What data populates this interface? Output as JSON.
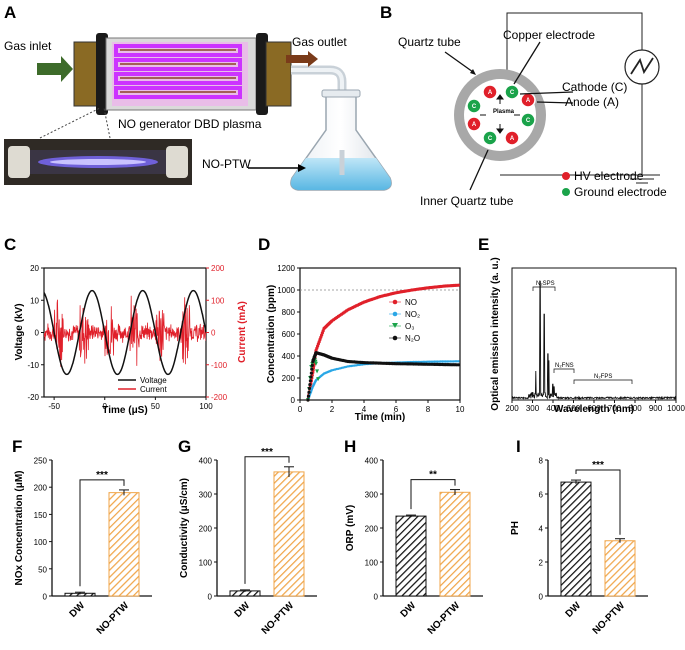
{
  "panels": {
    "A": "A",
    "B": "B",
    "C": "C",
    "D": "D",
    "E": "E",
    "F": "F",
    "G": "G",
    "H": "H",
    "I": "I"
  },
  "panelA": {
    "gas_inlet": "Gas inlet",
    "gas_outlet": "Gas outlet",
    "generator": "NO generator DBD plasma",
    "ptw": "NO-PTW"
  },
  "panelB": {
    "quartz_tube": "Quartz tube",
    "copper": "Copper electrode",
    "cathode": "Cathode (C)",
    "anode": "Anode (A)",
    "plasma": "Plasma",
    "inner_quartz": "Inner Quartz tube",
    "hv": "HV electrode",
    "ground": "Ground electrode",
    "A": "A",
    "C": "C"
  },
  "colors": {
    "red": "#e0202a",
    "black": "#111111",
    "blue": "#2aa7e6",
    "green": "#1aa34a",
    "orange": "#f0a64a",
    "plasma": "#cc33ff"
  },
  "chart_data": [
    {
      "id": "C",
      "type": "line",
      "xlabel": "Time (μS)",
      "ylabel": "Voltage (kV)",
      "y2label": "Current (mA)",
      "xlim": [
        -60,
        100
      ],
      "ylim": [
        -20,
        20
      ],
      "y2lim": [
        -200,
        200
      ],
      "xticks": [
        "-50",
        "0",
        "50",
        "100"
      ],
      "yticks": [
        "-20",
        "-10",
        "0",
        "10",
        "20"
      ],
      "y2ticks": [
        "-200",
        "-100",
        "0",
        "100",
        "200"
      ],
      "voltage_amplitude_kV": 13,
      "voltage_period_uS": 50,
      "current_peak_mA": 130,
      "series": [
        {
          "name": "Voltage"
        },
        {
          "name": "Current"
        }
      ]
    },
    {
      "id": "D",
      "type": "scatter",
      "xlabel": "Time (min)",
      "ylabel": "Concentration (ppm)",
      "xlim": [
        0,
        10
      ],
      "ylim": [
        0,
        1200
      ],
      "xticks": [
        "0",
        "2",
        "4",
        "6",
        "8",
        "10"
      ],
      "yticks": [
        "0",
        "200",
        "400",
        "600",
        "800",
        "1000",
        "1200"
      ],
      "reference_line": 1000,
      "series": [
        {
          "name": "NO",
          "x": [
            0.5,
            0.8,
            1.0,
            1.5,
            2,
            3,
            4,
            5,
            6,
            7,
            8,
            9,
            10
          ],
          "y": [
            0,
            250,
            450,
            650,
            720,
            820,
            890,
            940,
            975,
            1000,
            1020,
            1035,
            1045
          ]
        },
        {
          "name": "NO2",
          "x": [
            0.5,
            0.8,
            1.0,
            1.5,
            2,
            3,
            4,
            5,
            6,
            7,
            8,
            9,
            10
          ],
          "y": [
            0,
            120,
            180,
            240,
            270,
            305,
            325,
            335,
            340,
            345,
            348,
            350,
            352
          ]
        },
        {
          "name": "O3",
          "x": [
            0.5,
            0.7,
            0.9,
            1.0,
            1.2
          ],
          "y": [
            0,
            300,
            380,
            330,
            120
          ]
        },
        {
          "name": "N2O",
          "x": [
            0.5,
            0.8,
            1.0,
            1.5,
            2,
            3,
            4,
            5,
            6,
            7,
            8,
            9,
            10
          ],
          "y": [
            0,
            350,
            430,
            410,
            380,
            350,
            340,
            335,
            330,
            328,
            325,
            322,
            320
          ]
        }
      ],
      "legend": [
        "NO",
        "NO₂",
        "O₃",
        "N₂O"
      ]
    },
    {
      "id": "E",
      "type": "line",
      "xlabel": "Wavelength (nm)",
      "ylabel": "Optical emission intensity (a. u.)",
      "xlim": [
        200,
        1000
      ],
      "xticks": [
        "200",
        "300",
        "400",
        "500",
        "600",
        "700",
        "800",
        "900",
        "1000"
      ],
      "annotations": [
        "N₂SPS",
        "N₂FNS",
        "N₂FPS"
      ],
      "peaks": [
        {
          "x": 316,
          "y": 0.22
        },
        {
          "x": 337,
          "y": 0.9
        },
        {
          "x": 357,
          "y": 0.65
        },
        {
          "x": 375,
          "y": 0.35
        },
        {
          "x": 380,
          "y": 0.3
        },
        {
          "x": 399,
          "y": 0.12
        },
        {
          "x": 405,
          "y": 0.1
        }
      ]
    },
    {
      "id": "F",
      "type": "bar",
      "ylabel": "NOx Concentration (μM)",
      "categories": [
        "DW",
        "NO-PTW"
      ],
      "values": [
        5,
        190
      ],
      "errors": [
        2,
        5
      ],
      "ylim": [
        0,
        250
      ],
      "yticks": [
        "0",
        "50",
        "100",
        "150",
        "200",
        "250"
      ],
      "significance": "***"
    },
    {
      "id": "G",
      "type": "bar",
      "ylabel": "Conductivity (μS/cm)",
      "categories": [
        "DW",
        "NO-PTW"
      ],
      "values": [
        15,
        365
      ],
      "errors": [
        3,
        15
      ],
      "ylim": [
        0,
        400
      ],
      "yticks": [
        "0",
        "100",
        "200",
        "300",
        "400"
      ],
      "significance": "***"
    },
    {
      "id": "H",
      "type": "bar",
      "ylabel": "ORP (mV)",
      "categories": [
        "DW",
        "NO-PTW"
      ],
      "values": [
        235,
        305
      ],
      "errors": [
        3,
        8
      ],
      "ylim": [
        0,
        400
      ],
      "yticks": [
        "0",
        "100",
        "200",
        "300",
        "400"
      ],
      "significance": "**"
    },
    {
      "id": "I",
      "type": "bar",
      "ylabel": "PH",
      "categories": [
        "DW",
        "NO-PTW"
      ],
      "values": [
        6.7,
        3.25
      ],
      "errors": [
        0.12,
        0.12
      ],
      "ylim": [
        0,
        8
      ],
      "yticks": [
        "0",
        "2",
        "4",
        "6",
        "8"
      ],
      "significance": "***"
    }
  ]
}
